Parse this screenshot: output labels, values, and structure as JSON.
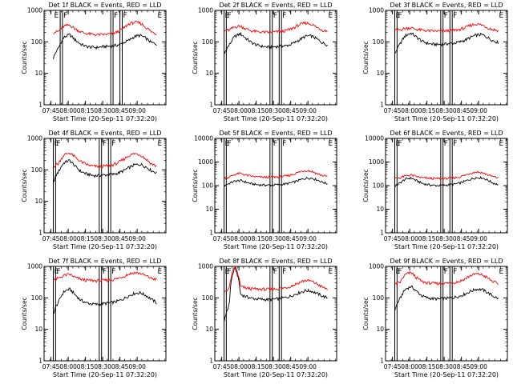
{
  "colors": {
    "events": "#000000",
    "lld": "#ff0000",
    "background": "#ffffff"
  },
  "chart_data": [
    {
      "type": "line",
      "title": "Det 1f BLACK = Events, RED = LLD",
      "xlabel": "Start Time (20-Sep-11 07:32:20)",
      "ylabel": "Counts/sec",
      "yscale": "log",
      "ylim": [
        1,
        1000
      ],
      "ytick_labels": [
        "1",
        "10",
        "100",
        "1000"
      ],
      "xtick_labels": [
        "07:45",
        "08:00",
        "08:15",
        "08:30",
        "08:45",
        "09:00"
      ],
      "xlim_minutes": [
        -6,
        100
      ],
      "xticks_minutes": [
        0,
        15,
        30,
        45,
        60,
        75
      ],
      "flags": [
        "E",
        "F",
        "F",
        "F",
        "E"
      ],
      "flag_lines_minutes": [
        8,
        10,
        52,
        54,
        60,
        62
      ],
      "data_start_minutes": 2,
      "data_end_minutes": 92,
      "series": [
        {
          "name": "Events",
          "values": [
            30,
            65,
            140,
            170,
            115,
            85,
            72,
            68,
            66,
            70,
            72,
            74,
            80,
            95,
            115,
            150,
            160,
            130,
            95,
            85
          ]
        },
        {
          "name": "LLD",
          "values": [
            200,
            215,
            320,
            340,
            260,
            210,
            185,
            175,
            168,
            170,
            175,
            185,
            215,
            280,
            380,
            420,
            390,
            290,
            210,
            175
          ]
        }
      ]
    },
    {
      "type": "line",
      "title": "Det 2f BLACK = Events, RED = LLD",
      "xlabel": "Start Time (20-Sep-11 07:32:20)",
      "ylabel": "Counts/sec",
      "yscale": "log",
      "ylim": [
        1,
        1000
      ],
      "ytick_labels": [
        "1",
        "10",
        "100",
        "1000"
      ],
      "xtick_labels": [
        "07:45",
        "08:00",
        "08:15",
        "08:30",
        "08:45",
        "09:00"
      ],
      "xlim_minutes": [
        -6,
        100
      ],
      "xticks_minutes": [
        0,
        15,
        30,
        45,
        60,
        75
      ],
      "flags": [
        "E",
        "F",
        "F",
        "F",
        "E"
      ],
      "flag_lines_minutes": [
        2,
        4,
        42,
        44,
        50,
        52
      ],
      "data_start_minutes": 2,
      "data_end_minutes": 92,
      "series": [
        {
          "name": "Events",
          "values": [
            40,
            80,
            150,
            180,
            130,
            95,
            80,
            72,
            68,
            70,
            72,
            74,
            80,
            95,
            120,
            150,
            155,
            125,
            95,
            80
          ]
        },
        {
          "name": "LLD",
          "values": [
            220,
            240,
            300,
            320,
            260,
            225,
            210,
            205,
            200,
            205,
            210,
            220,
            245,
            290,
            360,
            400,
            370,
            290,
            240,
            220
          ]
        }
      ]
    },
    {
      "type": "line",
      "title": "Det 3f BLACK = Events, RED = LLD",
      "xlabel": "Start Time (20-Sep-11 07:32:20)",
      "ylabel": "Counts/sec",
      "yscale": "log",
      "ylim": [
        1,
        1000
      ],
      "ytick_labels": [
        "1",
        "10",
        "100",
        "1000"
      ],
      "xtick_labels": [
        "07:45",
        "08:00",
        "08:15",
        "08:30",
        "08:45",
        "09:00"
      ],
      "xlim_minutes": [
        -6,
        100
      ],
      "xticks_minutes": [
        0,
        15,
        30,
        45,
        60,
        75
      ],
      "flags": [
        "E",
        "F",
        "F",
        "F",
        "E"
      ],
      "flag_lines_minutes": [
        2,
        4,
        42,
        44,
        50,
        52
      ],
      "data_start_minutes": 2,
      "data_end_minutes": 92,
      "series": [
        {
          "name": "Events",
          "values": [
            40,
            85,
            160,
            190,
            140,
            105,
            90,
            84,
            82,
            85,
            88,
            92,
            100,
            115,
            140,
            165,
            170,
            140,
            110,
            95
          ]
        },
        {
          "name": "LLD",
          "values": [
            230,
            245,
            270,
            280,
            250,
            235,
            225,
            222,
            220,
            222,
            225,
            232,
            250,
            285,
            340,
            370,
            345,
            285,
            245,
            230
          ]
        }
      ]
    },
    {
      "type": "line",
      "title": "Det 4f BLACK = Events, RED = LLD",
      "xlabel": "Start Time (20-Sep-11 07:32:20)",
      "ylabel": "Counts/sec",
      "yscale": "log",
      "ylim": [
        1,
        1000
      ],
      "ytick_labels": [
        "1",
        "10",
        "100",
        "1000"
      ],
      "xtick_labels": [
        "07:45",
        "08:00",
        "08:15",
        "08:30",
        "08:45",
        "09:00"
      ],
      "xlim_minutes": [
        -6,
        100
      ],
      "xticks_minutes": [
        0,
        15,
        30,
        45,
        60,
        75
      ],
      "flags": [
        "E",
        "F",
        "F",
        "F",
        "E"
      ],
      "flag_lines_minutes": [
        2,
        4,
        42,
        44,
        50,
        52
      ],
      "data_start_minutes": 2,
      "data_end_minutes": 92,
      "series": [
        {
          "name": "Events",
          "values": [
            40,
            90,
            170,
            200,
            130,
            90,
            75,
            68,
            65,
            68,
            70,
            72,
            80,
            95,
            120,
            145,
            150,
            125,
            95,
            80
          ]
        },
        {
          "name": "LLD",
          "values": [
            130,
            160,
            300,
            350,
            250,
            185,
            150,
            135,
            128,
            130,
            135,
            145,
            170,
            220,
            290,
            330,
            300,
            220,
            155,
            130
          ]
        }
      ]
    },
    {
      "type": "line",
      "title": "Det 5f BLACK = Events, RED = LLD",
      "xlabel": "Start Time (20-Sep-11 07:32:20)",
      "ylabel": "Counts/sec",
      "yscale": "log",
      "ylim": [
        1,
        10000
      ],
      "ytick_labels": [
        "1",
        "10",
        "100",
        "1000",
        "10000"
      ],
      "xtick_labels": [
        "07:45",
        "08:00",
        "08:15",
        "08:30",
        "08:45",
        "09:00"
      ],
      "xlim_minutes": [
        -6,
        100
      ],
      "xticks_minutes": [
        0,
        15,
        30,
        45,
        60,
        75
      ],
      "flags": [
        "E",
        "F",
        "F",
        "F",
        "E"
      ],
      "flag_lines_minutes": [
        2,
        4,
        42,
        44,
        50,
        52
      ],
      "data_start_minutes": 2,
      "data_end_minutes": 92,
      "series": [
        {
          "name": "Events",
          "values": [
            100,
            125,
            155,
            165,
            140,
            120,
            110,
            106,
            104,
            106,
            110,
            115,
            125,
            145,
            175,
            205,
            210,
            180,
            140,
            120
          ]
        },
        {
          "name": "LLD",
          "values": [
            210,
            230,
            300,
            330,
            280,
            250,
            235,
            228,
            225,
            228,
            235,
            245,
            270,
            320,
            390,
            440,
            410,
            330,
            270,
            240
          ]
        }
      ]
    },
    {
      "type": "line",
      "title": "Det 6f BLACK = Events, RED = LLD",
      "xlabel": "Start Time (20-Sep-11 07:32:20)",
      "ylabel": "Counts/sec",
      "yscale": "log",
      "ylim": [
        1,
        10000
      ],
      "ytick_labels": [
        "1",
        "10",
        "100",
        "1000",
        "10000"
      ],
      "xtick_labels": [
        "07:45",
        "08:00",
        "08:15",
        "08:30",
        "08:45",
        "09:00"
      ],
      "xlim_minutes": [
        -6,
        100
      ],
      "xticks_minutes": [
        0,
        15,
        30,
        45,
        60,
        75
      ],
      "flags": [
        "E",
        "F",
        "F",
        "F",
        "E"
      ],
      "flag_lines_minutes": [
        2,
        4,
        42,
        44,
        50,
        52
      ],
      "data_start_minutes": 2,
      "data_end_minutes": 92,
      "series": [
        {
          "name": "Events",
          "values": [
            90,
            130,
            190,
            210,
            160,
            125,
            110,
            103,
            100,
            103,
            108,
            115,
            130,
            155,
            190,
            220,
            215,
            175,
            130,
            110
          ]
        },
        {
          "name": "LLD",
          "values": [
            200,
            215,
            260,
            280,
            240,
            215,
            205,
            200,
            198,
            200,
            206,
            215,
            235,
            280,
            340,
            380,
            355,
            290,
            240,
            215
          ]
        }
      ]
    },
    {
      "type": "line",
      "title": "Det 7f BLACK = Events, RED = LLD",
      "xlabel": "Start Time (20-Sep-11 07:32:20)",
      "ylabel": "Counts/sec",
      "yscale": "log",
      "ylim": [
        1,
        1000
      ],
      "ytick_labels": [
        "1",
        "10",
        "100",
        "1000"
      ],
      "xtick_labels": [
        "07:45",
        "08:00",
        "08:15",
        "08:30",
        "08:45",
        "09:00"
      ],
      "xlim_minutes": [
        -6,
        100
      ],
      "xticks_minutes": [
        0,
        15,
        30,
        45,
        60,
        75
      ],
      "flags": [
        "E",
        "F",
        "F",
        "F",
        "E"
      ],
      "flag_lines_minutes": [
        2,
        4,
        42,
        44,
        50,
        52
      ],
      "data_start_minutes": 2,
      "data_end_minutes": 92,
      "series": [
        {
          "name": "Events",
          "values": [
            30,
            75,
            160,
            190,
            125,
            85,
            70,
            64,
            62,
            65,
            68,
            72,
            80,
            95,
            120,
            140,
            145,
            120,
            90,
            70
          ]
        },
        {
          "name": "LLD",
          "values": [
            380,
            420,
            520,
            560,
            450,
            390,
            365,
            355,
            350,
            355,
            365,
            380,
            420,
            490,
            580,
            640,
            600,
            500,
            420,
            380
          ]
        }
      ]
    },
    {
      "type": "line",
      "title": "Det 8f BLACK = Events, RED = LLD",
      "xlabel": "Start Time (20-Sep-11 07:32:20)",
      "ylabel": "Counts/sec",
      "yscale": "log",
      "ylim": [
        1,
        1000
      ],
      "ytick_labels": [
        "1",
        "10",
        "100",
        "1000"
      ],
      "xtick_labels": [
        "07:45",
        "08:00",
        "08:15",
        "08:30",
        "08:45",
        "09:00"
      ],
      "xlim_minutes": [
        -6,
        100
      ],
      "xticks_minutes": [
        0,
        15,
        30,
        45,
        60,
        75
      ],
      "flags": [
        "E",
        "F",
        "F",
        "F",
        "E"
      ],
      "flag_lines_minutes": [
        2,
        4,
        42,
        44,
        50,
        52
      ],
      "data_start_minutes": 2,
      "data_end_minutes": 92,
      "series": [
        {
          "name": "Events",
          "values": [
            15,
            60,
            900,
            130,
            110,
            98,
            92,
            90,
            88,
            90,
            94,
            100,
            110,
            128,
            150,
            170,
            165,
            140,
            115,
            100
          ]
        },
        {
          "name": "LLD",
          "values": [
            150,
            200,
            1000,
            230,
            205,
            195,
            190,
            188,
            186,
            190,
            196,
            205,
            225,
            265,
            320,
            360,
            340,
            280,
            220,
            190
          ]
        }
      ]
    },
    {
      "type": "line",
      "title": "Det 9f BLACK = Events, RED = LLD",
      "xlabel": "Start Time (20-Sep-11 07:32:20)",
      "ylabel": "Counts/sec",
      "yscale": "log",
      "ylim": [
        1,
        1000
      ],
      "ytick_labels": [
        "1",
        "10",
        "100",
        "1000"
      ],
      "xtick_labels": [
        "07:45",
        "08:00",
        "08:15",
        "08:30",
        "08:45",
        "09:00"
      ],
      "xlim_minutes": [
        -6,
        100
      ],
      "xticks_minutes": [
        0,
        15,
        30,
        45,
        60,
        75
      ],
      "flags": [
        "E",
        "F",
        "F",
        "F",
        "E"
      ],
      "flag_lines_minutes": [
        2,
        4,
        42,
        44,
        50,
        52
      ],
      "data_start_minutes": 2,
      "data_end_minutes": 92,
      "series": [
        {
          "name": "Events",
          "values": [
            40,
            95,
            190,
            230,
            160,
            115,
            100,
            94,
            92,
            95,
            98,
            104,
            115,
            135,
            165,
            190,
            185,
            150,
            115,
            95
          ]
        },
        {
          "name": "LLD",
          "values": [
            280,
            310,
            560,
            640,
            430,
            330,
            300,
            290,
            285,
            290,
            298,
            310,
            340,
            410,
            520,
            580,
            540,
            430,
            330,
            280
          ]
        }
      ]
    }
  ]
}
